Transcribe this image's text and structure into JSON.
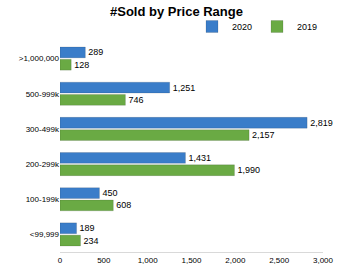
{
  "chart_data": {
    "type": "bar",
    "title": "#Sold by Price Range",
    "orientation": "horizontal",
    "categories": [
      ">1,000,000",
      "500-999k",
      "300-499k",
      "200-299k",
      "100-199k",
      "<99,999"
    ],
    "series": [
      {
        "name": "2020",
        "color": "#3a7dc9",
        "values": [
          289,
          1251,
          2819,
          1431,
          450,
          189
        ],
        "value_labels": [
          "289",
          "1,251",
          "2,819",
          "1,431",
          "450",
          "189"
        ]
      },
      {
        "name": "2019",
        "color": "#6aaa44",
        "values": [
          128,
          746,
          2157,
          1990,
          608,
          234
        ],
        "value_labels": [
          "128",
          "746",
          "2,157",
          "1,990",
          "608",
          "234"
        ]
      }
    ],
    "xlim": [
      0,
      3000
    ],
    "xticks": [
      0,
      500,
      {
        "value": 1000,
        "label": "1,000"
      },
      {
        "value": 1500,
        "label": "1,500"
      },
      {
        "value": 2000,
        "label": "2,000"
      },
      {
        "value": 2500,
        "label": "2,500"
      },
      {
        "value": 3000,
        "label": "3,000"
      }
    ],
    "grid": false,
    "data_labels": true,
    "legend": "top-right"
  }
}
